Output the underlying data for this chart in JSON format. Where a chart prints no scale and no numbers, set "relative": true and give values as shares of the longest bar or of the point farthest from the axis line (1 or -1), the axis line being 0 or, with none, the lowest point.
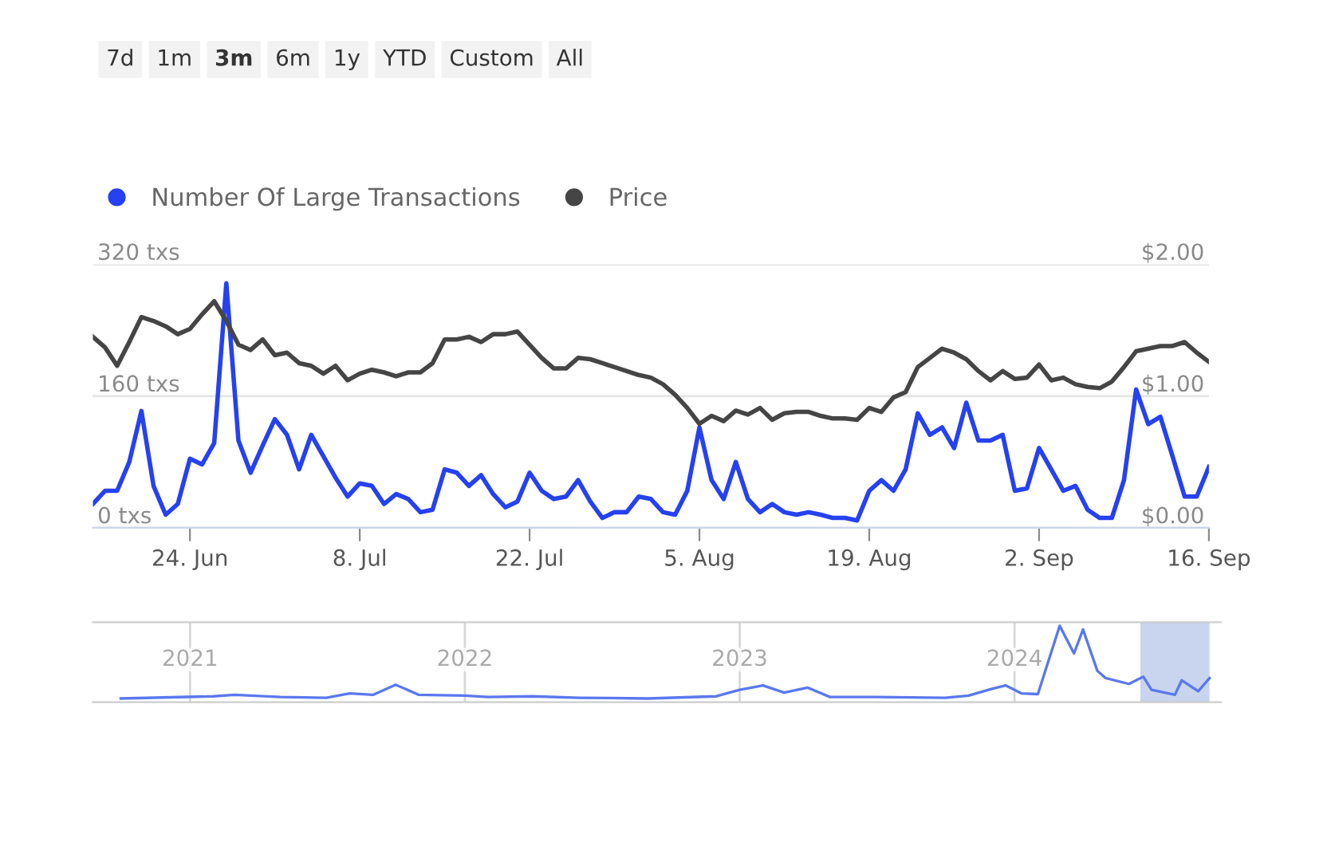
{
  "chart_data": [
    {
      "type": "line",
      "annotations": [
        "7d",
        "1m",
        "3m",
        "6m",
        "1y",
        "YTD",
        "Custom",
        "All"
      ],
      "x": [
        "2024-06-16",
        "2024-06-17",
        "2024-06-18",
        "2024-06-19",
        "2024-06-20",
        "2024-06-21",
        "2024-06-22",
        "2024-06-23",
        "2024-06-24",
        "2024-06-25",
        "2024-06-26",
        "2024-06-27",
        "2024-06-28",
        "2024-06-29",
        "2024-06-30",
        "2024-07-01",
        "2024-07-02",
        "2024-07-03",
        "2024-07-04",
        "2024-07-05",
        "2024-07-06",
        "2024-07-07",
        "2024-07-08",
        "2024-07-09",
        "2024-07-10",
        "2024-07-11",
        "2024-07-12",
        "2024-07-13",
        "2024-07-14",
        "2024-07-15",
        "2024-07-16",
        "2024-07-17",
        "2024-07-18",
        "2024-07-19",
        "2024-07-20",
        "2024-07-21",
        "2024-07-22",
        "2024-07-23",
        "2024-07-24",
        "2024-07-25",
        "2024-07-26",
        "2024-07-27",
        "2024-07-28",
        "2024-07-29",
        "2024-07-30",
        "2024-07-31",
        "2024-08-01",
        "2024-08-02",
        "2024-08-03",
        "2024-08-04",
        "2024-08-05",
        "2024-08-06",
        "2024-08-07",
        "2024-08-08",
        "2024-08-09",
        "2024-08-10",
        "2024-08-11",
        "2024-08-12",
        "2024-08-13",
        "2024-08-14",
        "2024-08-15",
        "2024-08-16",
        "2024-08-17",
        "2024-08-18",
        "2024-08-19",
        "2024-08-20",
        "2024-08-21",
        "2024-08-22",
        "2024-08-23",
        "2024-08-24",
        "2024-08-25",
        "2024-08-26",
        "2024-08-27",
        "2024-08-28",
        "2024-08-29",
        "2024-08-30",
        "2024-08-31",
        "2024-09-01",
        "2024-09-02",
        "2024-09-03",
        "2024-09-04",
        "2024-09-05",
        "2024-09-06",
        "2024-09-07",
        "2024-09-08",
        "2024-09-09",
        "2024-09-10",
        "2024-09-11",
        "2024-09-12",
        "2024-09-13",
        "2024-09-14",
        "2024-09-15",
        "2024-09-16"
      ],
      "series": [
        {
          "name": "Number Of Large Transactions",
          "color": "#2541f0",
          "values": [
            29,
            45,
            45,
            80,
            142,
            51,
            16,
            29,
            84,
            77,
            103,
            297,
            106,
            67,
            100,
            132,
            113,
            71,
            113,
            87,
            61,
            38,
            54,
            51,
            29,
            41,
            35,
            19,
            22,
            71,
            67,
            51,
            64,
            41,
            25,
            32,
            67,
            45,
            35,
            38,
            58,
            32,
            12,
            19,
            19,
            38,
            35,
            19,
            16,
            45,
            122,
            58,
            35,
            80,
            35,
            19,
            29,
            19,
            16,
            19,
            16,
            12,
            12,
            9,
            45,
            58,
            45,
            71,
            139,
            113,
            122,
            97,
            152,
            106,
            106,
            113,
            45,
            48,
            97,
            71,
            45,
            51,
            22,
            12,
            12,
            58,
            168,
            126,
            135,
            87,
            38,
            38,
            74
          ]
        },
        {
          "name": "Price",
          "color": "#454545",
          "axis": "y2",
          "values": [
            1.45,
            1.37,
            1.23,
            1.41,
            1.6,
            1.57,
            1.53,
            1.47,
            1.51,
            1.62,
            1.72,
            1.57,
            1.39,
            1.35,
            1.43,
            1.31,
            1.33,
            1.25,
            1.23,
            1.17,
            1.23,
            1.12,
            1.17,
            1.2,
            1.18,
            1.15,
            1.18,
            1.18,
            1.25,
            1.43,
            1.43,
            1.45,
            1.41,
            1.47,
            1.47,
            1.49,
            1.39,
            1.29,
            1.21,
            1.21,
            1.29,
            1.28,
            1.25,
            1.22,
            1.19,
            1.16,
            1.14,
            1.09,
            1.01,
            0.91,
            0.79,
            0.85,
            0.81,
            0.89,
            0.86,
            0.91,
            0.82,
            0.87,
            0.88,
            0.88,
            0.85,
            0.83,
            0.83,
            0.82,
            0.91,
            0.88,
            0.99,
            1.03,
            1.22,
            1.29,
            1.36,
            1.33,
            1.28,
            1.19,
            1.12,
            1.19,
            1.13,
            1.14,
            1.24,
            1.12,
            1.14,
            1.09,
            1.07,
            1.06,
            1.11,
            1.22,
            1.34,
            1.36,
            1.38,
            1.38,
            1.41,
            1.33,
            1.26
          ]
        }
      ],
      "xlim": [
        "2024-06-16",
        "2024-09-16"
      ],
      "xticks": [
        {
          "value": "2024-06-24",
          "label": "24. Jun"
        },
        {
          "value": "2024-07-08",
          "label": "8. Jul"
        },
        {
          "value": "2024-07-22",
          "label": "22. Jul"
        },
        {
          "value": "2024-08-05",
          "label": "5. Aug"
        },
        {
          "value": "2024-08-19",
          "label": "19. Aug"
        },
        {
          "value": "2024-09-02",
          "label": "2. Sep"
        },
        {
          "value": "2024-09-16",
          "label": "16. Sep"
        }
      ],
      "ylim": [
        0,
        320
      ],
      "yticks": [
        {
          "value": 0,
          "label": "0 txs"
        },
        {
          "value": 160,
          "label": "160 txs"
        },
        {
          "value": 320,
          "label": "320 txs"
        }
      ],
      "y2lim": [
        0,
        2
      ],
      "y2ticks": [
        {
          "value": 0,
          "label": "$0.00"
        },
        {
          "value": 1,
          "label": "$1.00"
        },
        {
          "value": 2,
          "label": "$2.00"
        }
      ],
      "grid": "y",
      "legend": "top left"
    },
    {
      "type": "line",
      "relative": true,
      "x": [
        "2020-10-01",
        "2021-02-01",
        "2021-03-01",
        "2021-05-01",
        "2021-07-01",
        "2021-08-01",
        "2021-09-01",
        "2021-10-01",
        "2021-11-01",
        "2022-01-01",
        "2022-02-01",
        "2022-04-01",
        "2022-06-01",
        "2022-09-01",
        "2022-12-01",
        "2023-01-01",
        "2023-02-01",
        "2023-03-01",
        "2023-04-01",
        "2023-05-01",
        "2023-07-01",
        "2023-10-01",
        "2023-11-01",
        "2023-12-01",
        "2023-12-20",
        "2024-01-10",
        "2024-02-01",
        "2024-03-01",
        "2024-03-20",
        "2024-04-01",
        "2024-04-20",
        "2024-05-01",
        "2024-06-01",
        "2024-06-20",
        "2024-07-01",
        "2024-08-01",
        "2024-08-10",
        "2024-09-01",
        "2024-09-16"
      ],
      "series": [
        {
          "color": "#5a78ee",
          "values": [
            0,
            0.03,
            0.05,
            0.02,
            0.01,
            0.07,
            0.05,
            0.19,
            0.05,
            0.04,
            0.02,
            0.03,
            0.01,
            0,
            0.03,
            0.12,
            0.18,
            0.08,
            0.15,
            0.02,
            0.02,
            0.01,
            0.04,
            0.13,
            0.18,
            0.07,
            0.06,
            1.0,
            0.62,
            0.95,
            0.38,
            0.28,
            0.2,
            0.3,
            0.12,
            0.05,
            0.25,
            0.1,
            0.28
          ]
        }
      ],
      "xlim": [
        "2020-08-25",
        "2024-10-01"
      ],
      "xticks": [
        "2021",
        "2022",
        "2023",
        "2024"
      ],
      "grid": "x",
      "bands": [
        {
          "axis": "x",
          "from": "2024-06-16",
          "to": "2024-09-16",
          "color": "#c9d5ee"
        }
      ]
    }
  ]
}
